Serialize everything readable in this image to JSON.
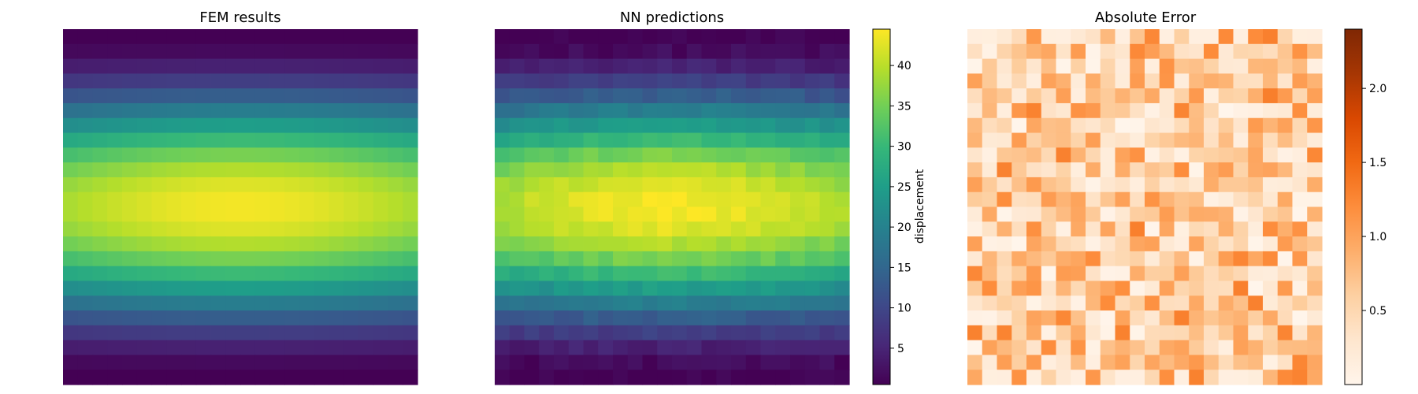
{
  "chart_data": [
    {
      "type": "heatmap",
      "title": "FEM results",
      "colormap": "viridis",
      "grid": false,
      "axes_visible": false,
      "rows": 24,
      "cols": 24,
      "value_range": [
        0.5,
        44.5
      ],
      "field": "displacement"
    },
    {
      "type": "heatmap",
      "title": "NN predictions",
      "colormap": "viridis",
      "grid": false,
      "axes_visible": false,
      "rows": 24,
      "cols": 24,
      "value_range": [
        0.5,
        44.5
      ],
      "colorbar": {
        "label": "displacement",
        "ticks": [
          "5",
          "10",
          "15",
          "20",
          "25",
          "30",
          "35",
          "40"
        ],
        "tick_values": [
          5,
          10,
          15,
          20,
          25,
          30,
          35,
          40
        ],
        "range": [
          0.5,
          44.5
        ]
      }
    },
    {
      "type": "heatmap",
      "title": "Absolute Error",
      "colormap": "oranges",
      "grid": false,
      "axes_visible": false,
      "rows": 24,
      "cols": 24,
      "value_range": [
        0.0,
        2.4
      ],
      "colorbar": {
        "label": "",
        "ticks": [
          "0.5",
          "1.0",
          "1.5",
          "2.0"
        ],
        "tick_values": [
          0.5,
          1.0,
          1.5,
          2.0
        ],
        "range": [
          0.0,
          2.4
        ]
      }
    }
  ]
}
